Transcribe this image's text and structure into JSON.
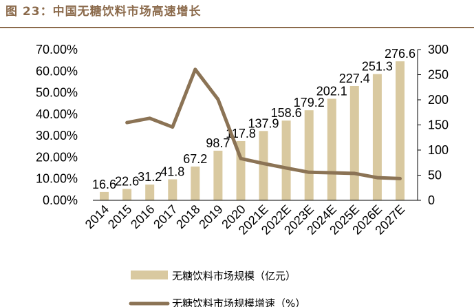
{
  "figure": {
    "title": "图 23：中国无糖饮料市场高速增长"
  },
  "colors": {
    "bar": "#D9C9A0",
    "line": "#8B7355",
    "title": "#8B6A4B"
  },
  "chart_data": {
    "type": "bar",
    "categories": [
      "2014",
      "2015",
      "2016",
      "2017",
      "2018",
      "2019",
      "2020",
      "2021E",
      "2022E",
      "2023E",
      "2024E",
      "2025E",
      "2026E",
      "2027E"
    ],
    "series": [
      {
        "name": "无糖饮料市场规模（亿元）",
        "type": "bar",
        "axis": "right",
        "values": [
          16.6,
          22.6,
          31.2,
          41.8,
          67.2,
          98.7,
          117.8,
          137.9,
          158.6,
          179.2,
          202.1,
          227.4,
          251.3,
          276.6
        ],
        "labels": [
          "16.6",
          "22.6",
          "31.2",
          "41.8",
          "67.2",
          "98.7",
          "117.8",
          "137.9",
          "158.6",
          "179.2",
          "202.1",
          "227.4",
          "251.3",
          "276.6"
        ]
      },
      {
        "name": "无糖饮料市场规模增速（%）",
        "type": "line",
        "axis": "left",
        "values": [
          null,
          36.1,
          38.1,
          34.0,
          60.8,
          46.9,
          19.4,
          17.1,
          15.0,
          13.0,
          12.8,
          12.5,
          10.5,
          10.1
        ]
      }
    ],
    "y_left": {
      "ticks": [
        "0.00%",
        "10.00%",
        "20.00%",
        "30.00%",
        "40.00%",
        "50.00%",
        "60.00%",
        "70.00%"
      ],
      "range": [
        0,
        70
      ]
    },
    "y_right": {
      "ticks": [
        "0",
        "50",
        "100",
        "150",
        "200",
        "250",
        "300"
      ],
      "range": [
        0,
        300
      ]
    },
    "legend": {
      "position": "bottom"
    }
  }
}
